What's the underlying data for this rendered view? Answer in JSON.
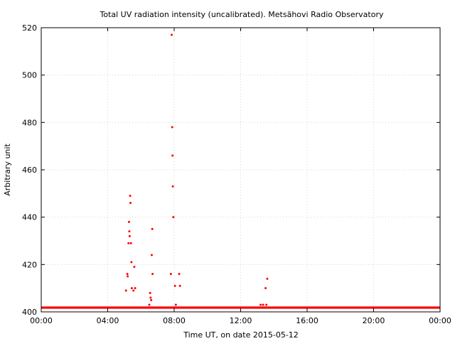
{
  "chart_data": {
    "type": "scatter",
    "title": "Total UV radiation intensity (uncalibrated). Metsähovi Radio Observatory",
    "xlabel": "Time UT, on date 2015-05-12",
    "ylabel": "Arbitrary unit",
    "xlim": [
      0,
      24
    ],
    "ylim": [
      400,
      520
    ],
    "x_ticks": [
      {
        "value": 0,
        "label": "00:00"
      },
      {
        "value": 4,
        "label": "04:00"
      },
      {
        "value": 8,
        "label": "08:00"
      },
      {
        "value": 12,
        "label": "12:00"
      },
      {
        "value": 16,
        "label": "16:00"
      },
      {
        "value": 20,
        "label": "20:00"
      },
      {
        "value": 24,
        "label": "00:00"
      }
    ],
    "y_ticks": [
      400,
      420,
      440,
      460,
      480,
      500,
      520
    ],
    "grid": true,
    "series_color": "#ff0000",
    "baseline": {
      "value": 401.8,
      "x_range": [
        0,
        24
      ]
    },
    "points": [
      [
        5.1,
        409
      ],
      [
        5.18,
        416
      ],
      [
        5.2,
        415
      ],
      [
        5.25,
        429
      ],
      [
        5.28,
        438
      ],
      [
        5.3,
        434
      ],
      [
        5.32,
        432
      ],
      [
        5.35,
        449
      ],
      [
        5.37,
        446
      ],
      [
        5.4,
        429
      ],
      [
        5.43,
        421
      ],
      [
        5.45,
        410
      ],
      [
        5.55,
        409
      ],
      [
        5.6,
        419
      ],
      [
        5.65,
        410
      ],
      [
        6.5,
        403
      ],
      [
        6.55,
        408
      ],
      [
        6.58,
        406
      ],
      [
        6.62,
        405
      ],
      [
        6.65,
        424
      ],
      [
        6.68,
        435
      ],
      [
        6.7,
        416
      ],
      [
        7.8,
        416
      ],
      [
        7.85,
        517
      ],
      [
        7.88,
        478
      ],
      [
        7.9,
        466
      ],
      [
        7.92,
        453
      ],
      [
        7.95,
        440
      ],
      [
        8.05,
        411
      ],
      [
        8.1,
        403
      ],
      [
        8.3,
        416
      ],
      [
        8.35,
        411
      ],
      [
        13.2,
        403
      ],
      [
        13.35,
        403
      ],
      [
        13.5,
        410
      ],
      [
        13.55,
        403
      ],
      [
        13.6,
        414
      ]
    ]
  }
}
